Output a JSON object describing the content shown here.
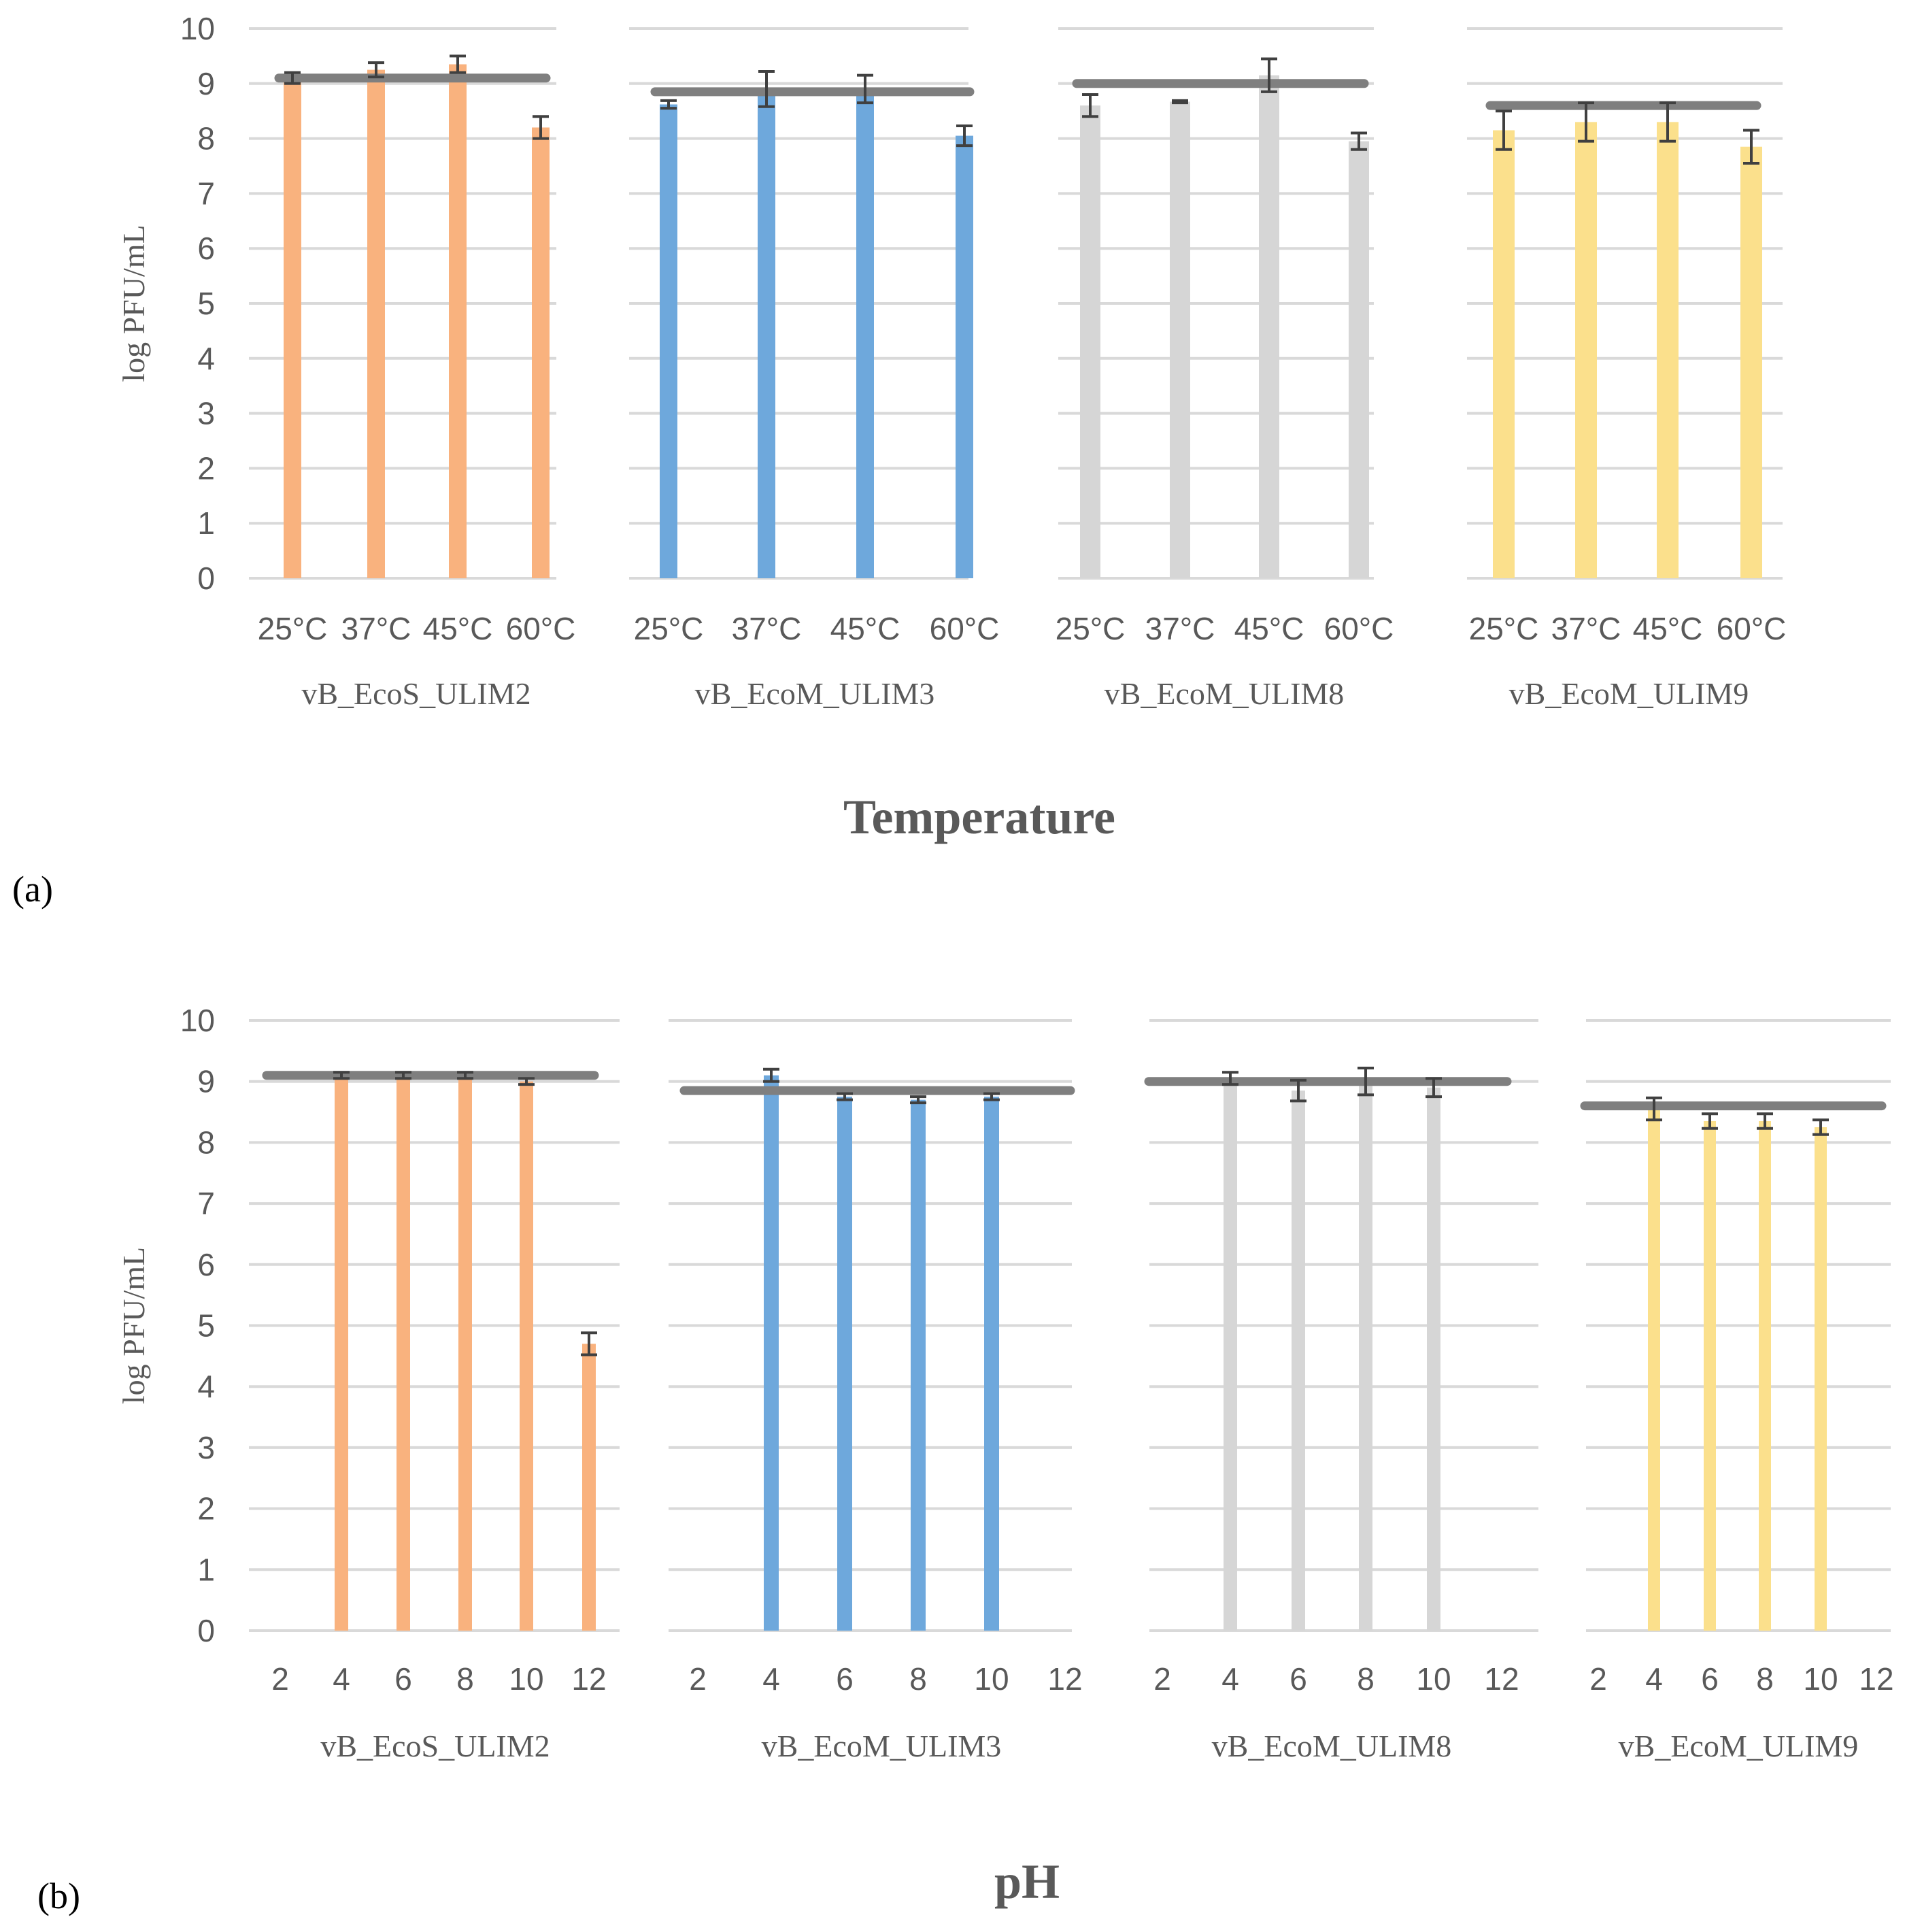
{
  "colors": {
    "ULIM2": "#F9B27E",
    "ULIM3": "#6EA8DC",
    "ULIM8": "#D6D6D6",
    "ULIM9": "#FBE08C",
    "reference_line": "#7F7F7F",
    "error_bar": "#404040",
    "gridline": "#D9D9D9",
    "text": "#595959"
  },
  "chart_data": [
    {
      "panel_label": "(a)",
      "type": "bar",
      "title": "Temperature",
      "ylabel": "log PFU/mL",
      "ylim": [
        0,
        10
      ],
      "yticks": [
        "0",
        "1",
        "2",
        "3",
        "4",
        "5",
        "6",
        "7",
        "8",
        "9",
        "10"
      ],
      "grid": true,
      "groups": [
        {
          "name": "vB_EcoS_ULIM2",
          "color_key": "ULIM2",
          "categories": [
            "25°C",
            "37°C",
            "45°C",
            "60°C"
          ],
          "values": [
            9.1,
            9.25,
            9.35,
            8.2
          ],
          "errors": [
            0.1,
            0.13,
            0.15,
            0.2
          ],
          "reference": 9.1
        },
        {
          "name": "vB_EcoM_ULIM3",
          "color_key": "ULIM3",
          "categories": [
            "25°C",
            "37°C",
            "45°C",
            "60°C"
          ],
          "values": [
            8.62,
            8.9,
            8.9,
            8.05
          ],
          "errors": [
            0.07,
            0.32,
            0.25,
            0.18
          ],
          "reference": 8.85
        },
        {
          "name": "vB_EcoM_ULIM8",
          "color_key": "ULIM8",
          "categories": [
            "25°C",
            "37°C",
            "45°C",
            "60°C"
          ],
          "values": [
            8.6,
            8.67,
            9.15,
            7.95
          ],
          "errors": [
            0.2,
            0.02,
            0.3,
            0.15
          ],
          "reference": 9.0
        },
        {
          "name": "vB_EcoM_ULIM9",
          "color_key": "ULIM9",
          "categories": [
            "25°C",
            "37°C",
            "45°C",
            "60°C"
          ],
          "values": [
            8.15,
            8.3,
            8.3,
            7.85
          ],
          "errors": [
            0.35,
            0.35,
            0.35,
            0.3
          ],
          "reference": 8.6
        }
      ]
    },
    {
      "panel_label": "(b)",
      "type": "bar",
      "title": "pH",
      "ylabel": "log PFU/mL",
      "ylim": [
        0,
        10
      ],
      "yticks": [
        "0",
        "1",
        "2",
        "3",
        "4",
        "5",
        "6",
        "7",
        "8",
        "9",
        "10"
      ],
      "grid": true,
      "groups": [
        {
          "name": "vB_EcoS_ULIM2",
          "color_key": "ULIM2",
          "categories": [
            "2",
            "4",
            "6",
            "8",
            "10",
            "12"
          ],
          "values": [
            0,
            9.1,
            9.1,
            9.1,
            9.0,
            4.7
          ],
          "errors": [
            0,
            0.05,
            0.05,
            0.05,
            0.05,
            0.18
          ],
          "reference": 9.1
        },
        {
          "name": "vB_EcoM_ULIM3",
          "color_key": "ULIM3",
          "categories": [
            "2",
            "4",
            "6",
            "8",
            "10",
            "12"
          ],
          "values": [
            0,
            9.1,
            8.75,
            8.7,
            8.75,
            0
          ],
          "errors": [
            0,
            0.1,
            0.05,
            0.05,
            0.05,
            0
          ],
          "reference": 8.85
        },
        {
          "name": "vB_EcoM_ULIM8",
          "color_key": "ULIM8",
          "categories": [
            "2",
            "4",
            "6",
            "8",
            "10",
            "12"
          ],
          "values": [
            0,
            9.05,
            8.85,
            9.0,
            8.9,
            0
          ],
          "errors": [
            0,
            0.1,
            0.17,
            0.22,
            0.15,
            0
          ],
          "reference": 9.0
        },
        {
          "name": "vB_EcoM_ULIM9",
          "color_key": "ULIM9",
          "categories": [
            "2",
            "4",
            "6",
            "8",
            "10",
            "12"
          ],
          "values": [
            0,
            8.55,
            8.35,
            8.35,
            8.25,
            0
          ],
          "errors": [
            0,
            0.18,
            0.12,
            0.12,
            0.12,
            0
          ],
          "reference": 8.6
        }
      ]
    }
  ]
}
